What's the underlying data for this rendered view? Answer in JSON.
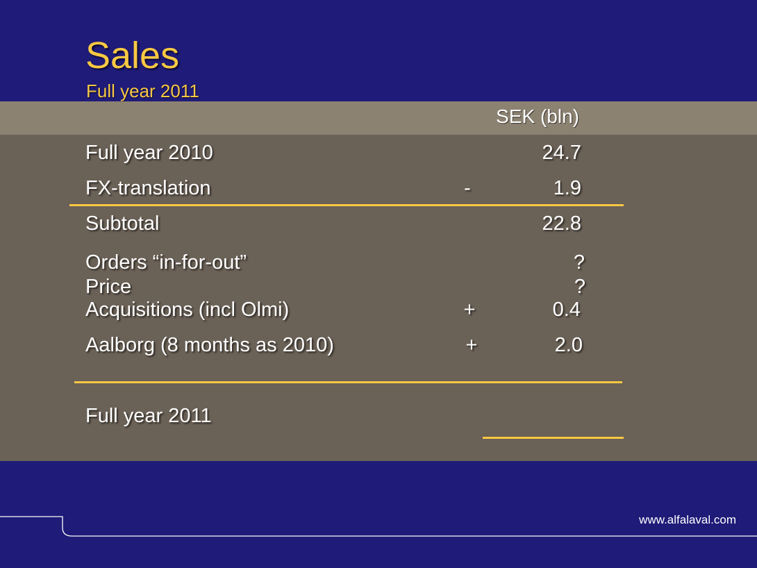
{
  "slide": {
    "title": "Sales",
    "subtitle": "Full year 2011",
    "unit_header": "SEK (bln)"
  },
  "rows": {
    "fy2010": {
      "label": "Full year 2010",
      "sign": "",
      "value": "24.7"
    },
    "fx": {
      "label": "FX-translation",
      "sign": "-",
      "value": "1.9"
    },
    "subtotal": {
      "label": "Subtotal",
      "sign": "",
      "value": "22.8"
    },
    "orders": {
      "label": "Orders “in-for-out”",
      "sign": "",
      "value": "?"
    },
    "price": {
      "label": "Price",
      "sign": "",
      "value": "?"
    },
    "acquisitions": {
      "label": "Acquisitions (incl Olmi)",
      "sign": "+",
      "value": "0.4"
    },
    "aalborg": {
      "label": "Aalborg (8 months as 2010)",
      "sign": "+",
      "value": "2.0"
    },
    "fy2011": {
      "label": "Full year 2011",
      "sign": "",
      "value": ""
    }
  },
  "footer": {
    "url": "www.alfalaval.com"
  },
  "colors": {
    "background": "#1f1b78",
    "accent": "#f7c843",
    "header_band": "#8c8272",
    "panel": "#6a6157",
    "text": "#ffffff"
  }
}
